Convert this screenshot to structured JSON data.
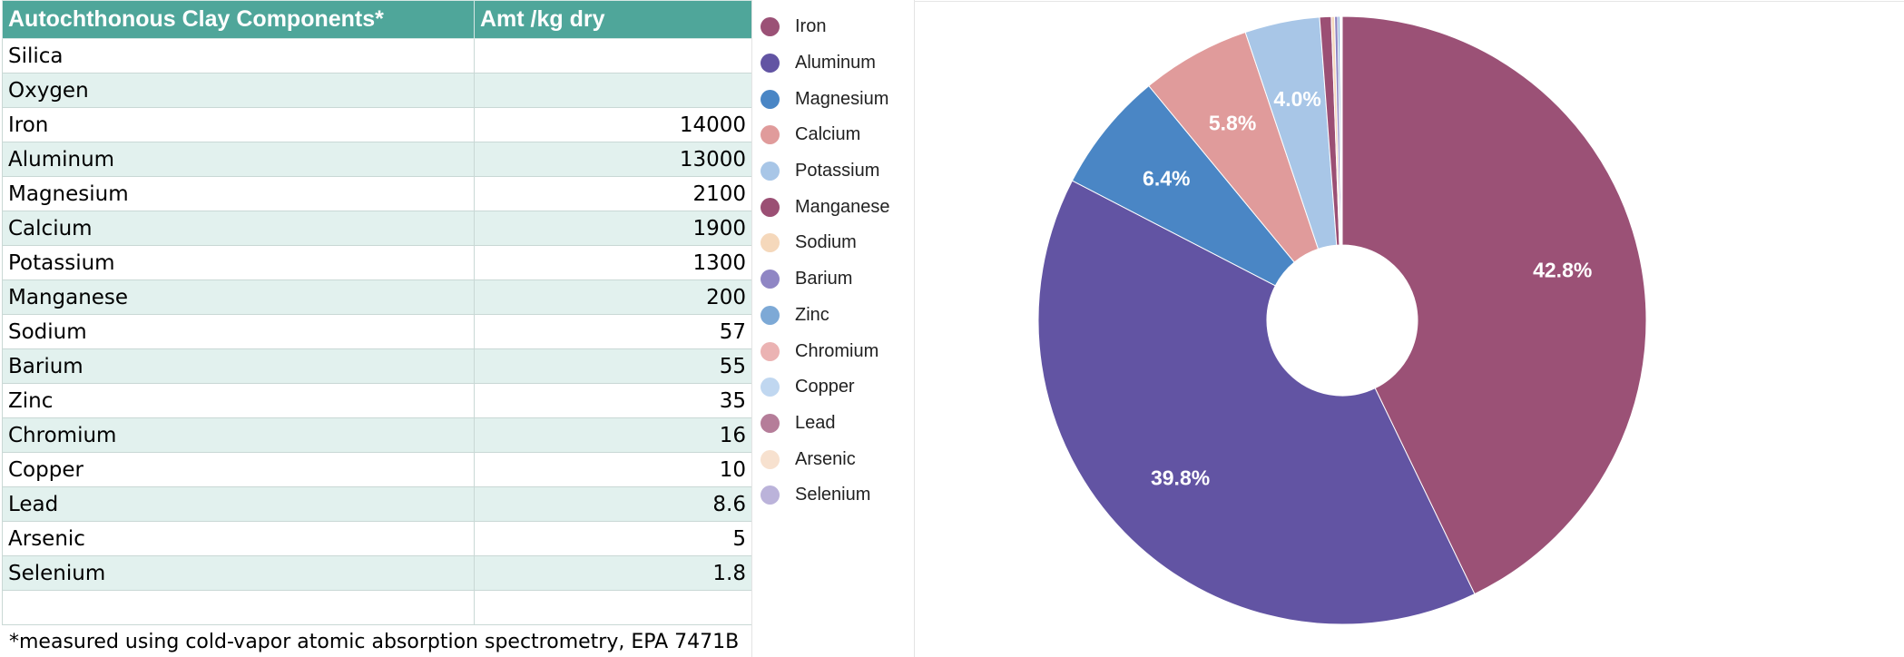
{
  "table": {
    "headers": [
      "Autochthonous Clay Components*",
      "Amt /kg dry"
    ],
    "rows": [
      {
        "name": "Silica",
        "amount": ""
      },
      {
        "name": "Oxygen",
        "amount": ""
      },
      {
        "name": "Iron",
        "amount": "14000"
      },
      {
        "name": "Aluminum",
        "amount": "13000"
      },
      {
        "name": "Magnesium",
        "amount": "2100"
      },
      {
        "name": "Calcium",
        "amount": "1900"
      },
      {
        "name": "Potassium",
        "amount": "1300"
      },
      {
        "name": "Manganese",
        "amount": "200"
      },
      {
        "name": "Sodium",
        "amount": "57"
      },
      {
        "name": "Barium",
        "amount": "55"
      },
      {
        "name": "Zinc",
        "amount": "35"
      },
      {
        "name": "Chromium",
        "amount": "16"
      },
      {
        "name": "Copper",
        "amount": "10"
      },
      {
        "name": "Lead",
        "amount": "8.6"
      },
      {
        "name": "Arsenic",
        "amount": "5"
      },
      {
        "name": "Selenium",
        "amount": "1.8"
      },
      {
        "name": "",
        "amount": ""
      }
    ],
    "footnote": "*measured using cold-vapor atomic absorption spectrometry, EPA 7471B"
  },
  "chart_data": {
    "type": "pie",
    "donut": true,
    "legend_position": "left",
    "slices": [
      {
        "name": "Iron",
        "value": 14000,
        "label": "42.8%",
        "color": "#9b5176"
      },
      {
        "name": "Aluminum",
        "value": 13000,
        "label": "39.8%",
        "color": "#6254a3"
      },
      {
        "name": "Magnesium",
        "value": 2100,
        "label": "6.4%",
        "color": "#4a86c5"
      },
      {
        "name": "Calcium",
        "value": 1900,
        "label": "5.8%",
        "color": "#e09b9b"
      },
      {
        "name": "Potassium",
        "value": 1300,
        "label": "4.0%",
        "color": "#a8c6e7"
      },
      {
        "name": "Manganese",
        "value": 200,
        "label": "",
        "color": "#9b4f74"
      },
      {
        "name": "Sodium",
        "value": 57,
        "label": "",
        "color": "#f5d8bb"
      },
      {
        "name": "Barium",
        "value": 55,
        "label": "",
        "color": "#8f86c4"
      },
      {
        "name": "Zinc",
        "value": 35,
        "label": "",
        "color": "#7da9d6"
      },
      {
        "name": "Chromium",
        "value": 16,
        "label": "",
        "color": "#ebb3b3"
      },
      {
        "name": "Copper",
        "value": 10,
        "label": "",
        "color": "#c0d7f0"
      },
      {
        "name": "Lead",
        "value": 8.6,
        "label": "",
        "color": "#b57d99"
      },
      {
        "name": "Arsenic",
        "value": 5,
        "label": "",
        "color": "#f7e1cf"
      },
      {
        "name": "Selenium",
        "value": 1.8,
        "label": "",
        "color": "#bbb3da"
      }
    ]
  }
}
